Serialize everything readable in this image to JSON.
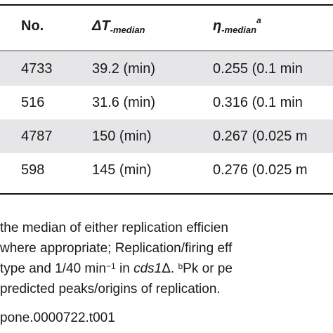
{
  "table": {
    "headers": {
      "no": "No.",
      "delta_symbol": "ΔT",
      "delta_sub": "-median",
      "eta_symbol": "η",
      "eta_sub": "-median",
      "eta_sup": "a"
    },
    "rows": [
      {
        "no": "4733",
        "delta_t": "39.2 (min)",
        "eta": "0.255 (0.1 min"
      },
      {
        "no": "516",
        "delta_t": "31.6 (min)",
        "eta": "0.316 (0.1 min"
      },
      {
        "no": "4787",
        "delta_t": "150 (min)",
        "eta": "0.267 (0.025 m"
      },
      {
        "no": "598",
        "delta_t": "145 (min)",
        "eta": "0.276 (0.025 m"
      }
    ]
  },
  "footnote": {
    "line1": "the median of either replication efficien",
    "line2": "where appropriate; Replication/firing eff",
    "line3_a": "type and 1/40 min",
    "line3_sup": "−1",
    "line3_b": " in ",
    "line3_gene": "cds1",
    "line3_delta": "Δ. ",
    "line3_sup_b": "b",
    "line3_c": "Pk or pe",
    "line4": "predicted peaks/origins of replication.",
    "doi": "pone.0000722.t001"
  }
}
